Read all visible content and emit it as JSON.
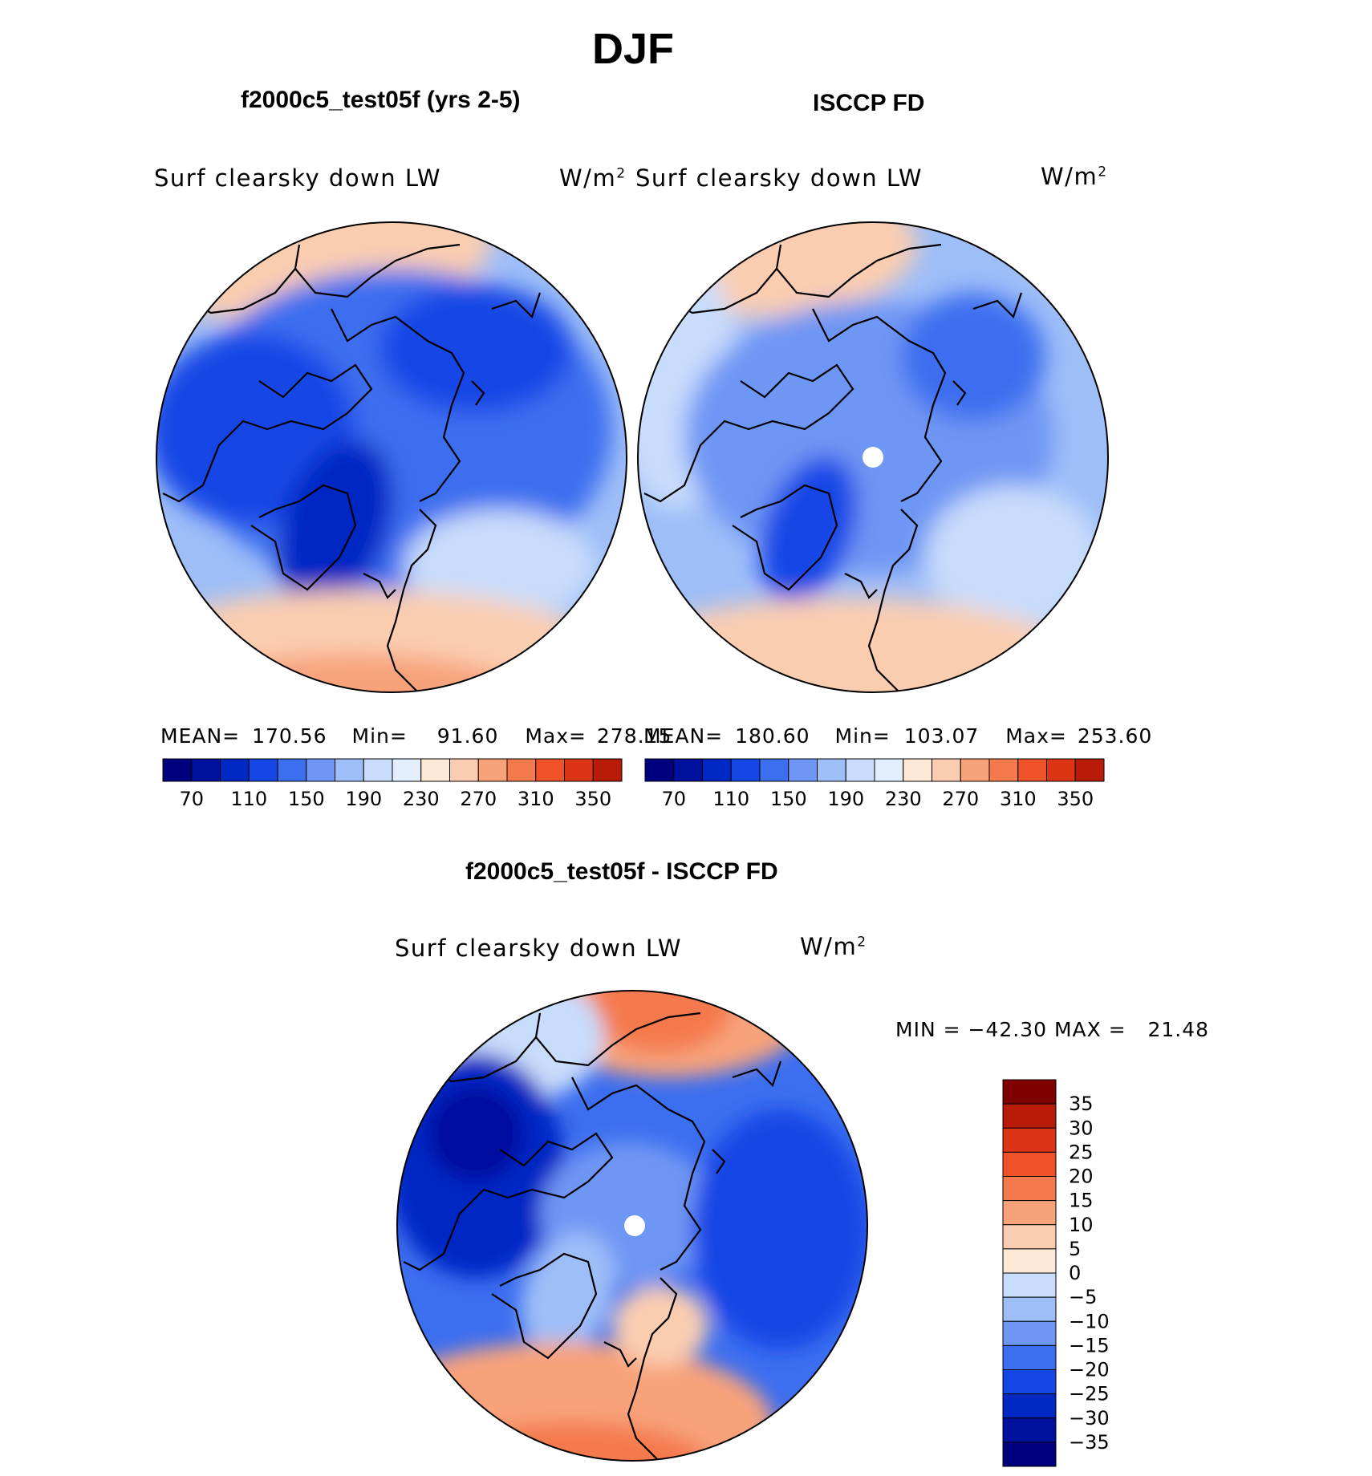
{
  "main_title": "DJF",
  "panels": [
    {
      "heading": "f2000c5_test05f (yrs 2-5)",
      "subtitle_left": "Surf clearsky down LW",
      "units": "W/m",
      "units_sup": "2",
      "stats": {
        "mean_label": "MEAN=",
        "mean": "170.56",
        "min_label": "Min=",
        "min": "91.60",
        "max_label": "Max=",
        "max": "278.15"
      }
    },
    {
      "heading": "ISCCP FD",
      "subtitle_left": "Surf clearsky down LW",
      "units": "W/m",
      "units_sup": "2",
      "stats": {
        "mean_label": "MEAN=",
        "mean": "180.60",
        "min_label": "Min=",
        "min": "103.07",
        "max_label": "Max=",
        "max": "253.60"
      }
    }
  ],
  "diff_panel": {
    "heading": "f2000c5_test05f - ISCCP FD",
    "subtitle_left": "Surf clearsky down LW",
    "units": "W/m",
    "units_sup": "2",
    "minmax_text": "MIN = −42.30 MAX =   21.48"
  },
  "chart_data": [
    {
      "type": "heatmap",
      "title": "f2000c5_test05f (yrs 2-5)",
      "variable": "Surf clearsky down LW",
      "units": "W/m2",
      "projection": "north polar stereographic",
      "stats": {
        "mean": 170.56,
        "min": 91.6,
        "max": 278.15
      },
      "colorbar_levels": [
        60,
        70,
        90,
        110,
        130,
        150,
        170,
        190,
        210,
        230,
        250,
        270,
        290,
        310,
        330,
        350
      ],
      "colorbar_tick_labels": [
        "70",
        "110",
        "150",
        "190",
        "230",
        "270",
        "310",
        "350"
      ],
      "colors": [
        "#00007f",
        "#0011a0",
        "#0028c4",
        "#1646e6",
        "#3c6ef0",
        "#6e96f4",
        "#9ebef8",
        "#c8dcfb",
        "#e2eefc",
        "#fde9d6",
        "#fbcdb0",
        "#f8a27a",
        "#f47a4e",
        "#ef5128",
        "#dc3414",
        "#b81c08",
        "#7f0000"
      ]
    },
    {
      "type": "heatmap",
      "title": "ISCCP FD",
      "variable": "Surf clearsky down LW",
      "units": "W/m2",
      "projection": "north polar stereographic",
      "stats": {
        "mean": 180.6,
        "min": 103.07,
        "max": 253.6
      },
      "colorbar_levels": [
        60,
        70,
        90,
        110,
        130,
        150,
        170,
        190,
        210,
        230,
        250,
        270,
        290,
        310,
        330,
        350
      ],
      "colorbar_tick_labels": [
        "70",
        "110",
        "150",
        "190",
        "230",
        "270",
        "310",
        "350"
      ],
      "colors": [
        "#00007f",
        "#0011a0",
        "#0028c4",
        "#1646e6",
        "#3c6ef0",
        "#6e96f4",
        "#9ebef8",
        "#c8dcfb",
        "#e2eefc",
        "#fde9d6",
        "#fbcdb0",
        "#f8a27a",
        "#f47a4e",
        "#ef5128",
        "#dc3414",
        "#b81c08",
        "#7f0000"
      ]
    },
    {
      "type": "heatmap",
      "title": "f2000c5_test05f - ISCCP FD",
      "variable": "Surf clearsky down LW",
      "units": "W/m2",
      "projection": "north polar stereographic",
      "stats": {
        "min": -42.3,
        "max": 21.48
      },
      "colorbar_tick_labels": [
        "35",
        "30",
        "25",
        "20",
        "15",
        "10",
        "5",
        "0",
        "−5",
        "−10",
        "−15",
        "−20",
        "−25",
        "−30",
        "−35"
      ],
      "colors": [
        "#7f0000",
        "#b81c08",
        "#dc3414",
        "#ef5128",
        "#f47a4e",
        "#f8a27a",
        "#fbcdb0",
        "#fde9d6",
        "#c8dcfb",
        "#9ebef8",
        "#6e96f4",
        "#3c6ef0",
        "#1646e6",
        "#0028c4",
        "#0011a0",
        "#00007f"
      ]
    }
  ]
}
